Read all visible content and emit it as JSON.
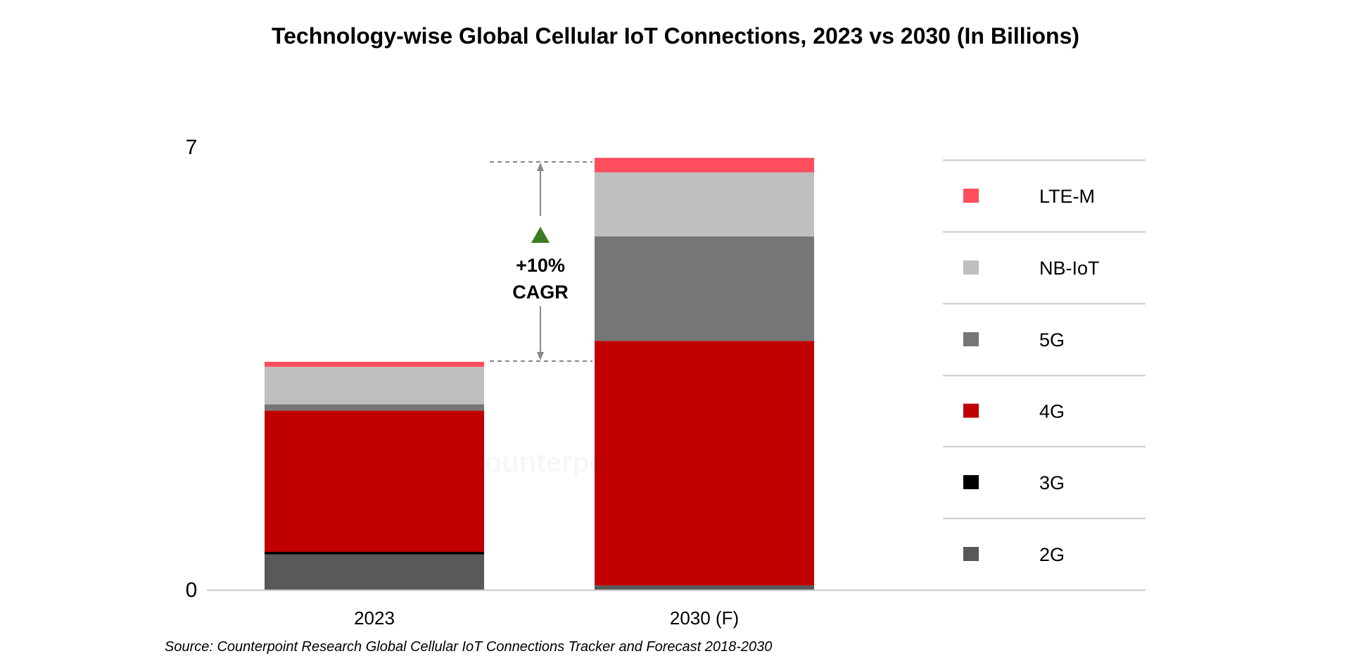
{
  "chart_data": {
    "type": "bar",
    "stacked": true,
    "title": "Technology-wise Global Cellular IoT Connections, 2023 vs 2030 (In Billions)",
    "xlabel": "",
    "ylabel": "",
    "ylim": [
      0,
      7
    ],
    "yticks": [
      "0",
      "7"
    ],
    "grid": false,
    "legend_position": "right",
    "categories": [
      "2023",
      "2030 (F)"
    ],
    "series": [
      {
        "name": "2G",
        "color": "#595959",
        "values": [
          0.56,
          0.07
        ]
      },
      {
        "name": "3G",
        "color": "#000000",
        "values": [
          0.04,
          0.0
        ]
      },
      {
        "name": "4G",
        "color": "#c00000",
        "values": [
          2.23,
          3.86
        ]
      },
      {
        "name": "5G",
        "color": "#767676",
        "values": [
          0.1,
          1.65
        ]
      },
      {
        "name": "NB-IoT",
        "color": "#bfbfbf",
        "values": [
          0.59,
          1.01
        ]
      },
      {
        "name": "LTE-M",
        "color": "#ff4f5e",
        "values": [
          0.08,
          0.23
        ]
      }
    ],
    "annotation": {
      "line1": "+10%",
      "line2": "CAGR",
      "arrow_color": "#3a7d22"
    },
    "source": "Source: Counterpoint Research Global Cellular IoT Connections Tracker and Forecast 2018-2030",
    "watermark": "Counterpoint"
  }
}
